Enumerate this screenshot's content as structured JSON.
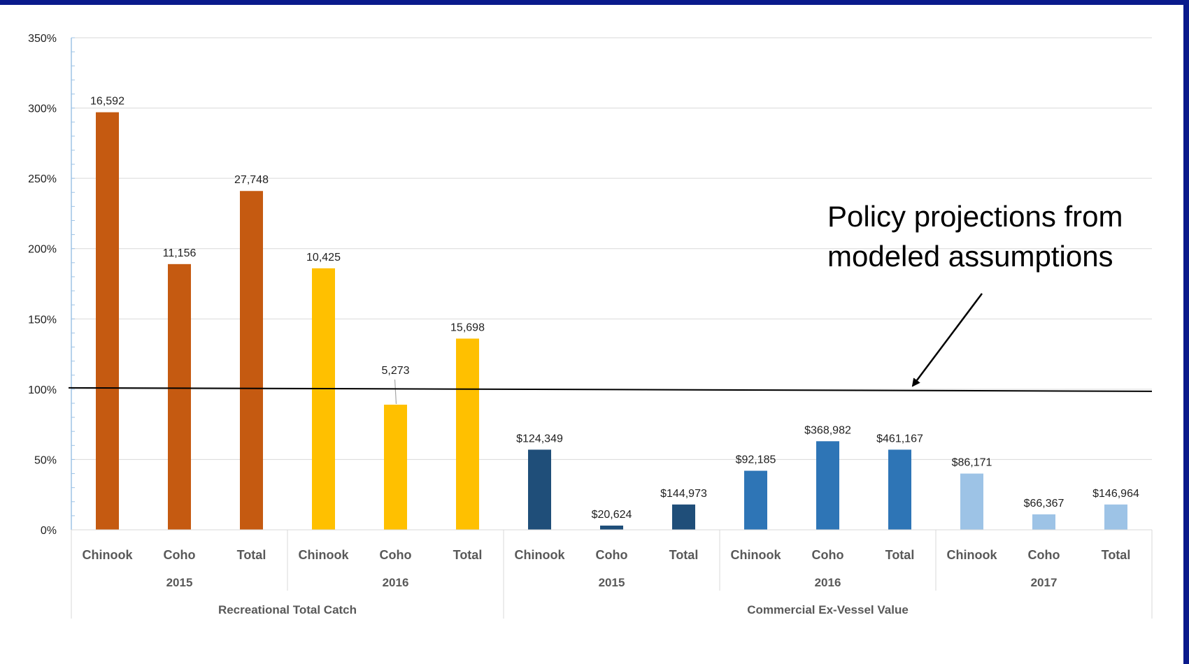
{
  "chart_data": {
    "type": "bar",
    "title": "",
    "xlabel": "",
    "ylabel": "",
    "ylim": [
      0,
      350
    ],
    "yticks": [
      "0%",
      "50%",
      "100%",
      "150%",
      "200%",
      "250%",
      "300%",
      "350%"
    ],
    "grid": true,
    "legend": "none",
    "reference_line": {
      "y": 100
    },
    "annotation": [
      "Policy projections from",
      "modeled assumptions"
    ],
    "colors": {
      "recreational_2015": "#c55a11",
      "recreational_2016": "#ffc000",
      "commercial_2015": "#1f4e79",
      "commercial_2016": "#2e75b6",
      "commercial_2017": "#9dc3e6"
    },
    "groups": [
      {
        "label": "Recreational Total Catch",
        "years": [
          {
            "label": "2015",
            "color": "#c55a11",
            "bars": [
              {
                "category": "Chinook",
                "value": 297,
                "label": "16,592"
              },
              {
                "category": "Coho",
                "value": 189,
                "label": "11,156"
              },
              {
                "category": "Total",
                "value": 241,
                "label": "27,748"
              }
            ]
          },
          {
            "label": "2016",
            "color": "#ffc000",
            "bars": [
              {
                "category": "Chinook",
                "value": 186,
                "label": "10,425"
              },
              {
                "category": "Coho",
                "value": 89,
                "label": "5,273"
              },
              {
                "category": "Total",
                "value": 136,
                "label": "15,698"
              }
            ]
          }
        ]
      },
      {
        "label": "Commercial Ex-Vessel Value",
        "years": [
          {
            "label": "2015",
            "color": "#1f4e79",
            "bars": [
              {
                "category": "Chinook",
                "value": 57,
                "label": "$124,349"
              },
              {
                "category": "Coho",
                "value": 3,
                "label": "$20,624"
              },
              {
                "category": "Total",
                "value": 18,
                "label": "$144,973"
              }
            ]
          },
          {
            "label": "2016",
            "color": "#2e75b6",
            "bars": [
              {
                "category": "Chinook",
                "value": 42,
                "label": "$92,185"
              },
              {
                "category": "Coho",
                "value": 63,
                "label": "$368,982"
              },
              {
                "category": "Total",
                "value": 57,
                "label": "$461,167"
              }
            ]
          },
          {
            "label": "2017",
            "color": "#9dc3e6",
            "bars": [
              {
                "category": "Chinook",
                "value": 40,
                "label": "$86,171"
              },
              {
                "category": "Coho",
                "value": 11,
                "label": "$66,367"
              },
              {
                "category": "Total",
                "value": 18,
                "label": "$146,964"
              }
            ]
          }
        ]
      }
    ]
  }
}
